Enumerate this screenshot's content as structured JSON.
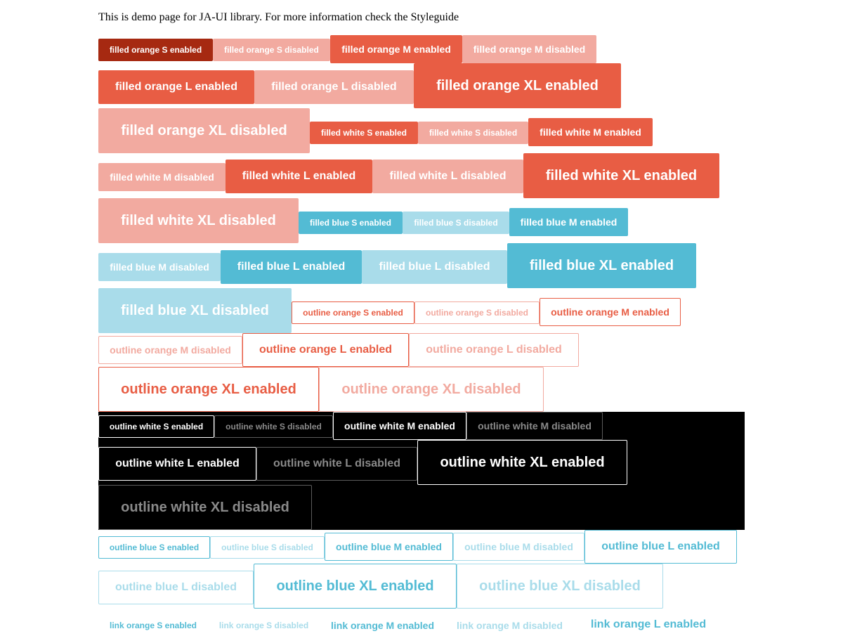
{
  "intro_text": "This is demo page for JA-UI library. For more information check the Styleguide",
  "colors": {
    "orange": "#e85d44",
    "orange_disabled": "#f2aaa0",
    "orange_pressed": "#a62911",
    "blue": "#53bbd4",
    "blue_disabled": "#a9dcea",
    "black": "#000000",
    "white": "#ffffff"
  },
  "buttons": {
    "filled_orange_s_enabled": "filled orange S enabled",
    "filled_orange_s_disabled": "filled orange S disabled",
    "filled_orange_m_enabled": "filled orange M enabled",
    "filled_orange_m_disabled": "filled orange M disabled",
    "filled_orange_l_enabled": "filled orange L enabled",
    "filled_orange_l_disabled": "filled orange L disabled",
    "filled_orange_xl_enabled": "filled orange XL enabled",
    "filled_orange_xl_disabled": "filled orange XL disabled",
    "filled_white_s_enabled": "filled white S enabled",
    "filled_white_s_disabled": "filled white S disabled",
    "filled_white_m_enabled": "filled white M enabled",
    "filled_white_m_disabled": "filled white M disabled",
    "filled_white_l_enabled": "filled white L enabled",
    "filled_white_l_disabled": "filled white L disabled",
    "filled_white_xl_enabled": "filled white XL enabled",
    "filled_white_xl_disabled": "filled white XL disabled",
    "filled_blue_s_enabled": "filled blue S enabled",
    "filled_blue_s_disabled": "filled blue S disabled",
    "filled_blue_m_enabled": "filled blue M enabled",
    "filled_blue_m_disabled": "filled blue M disabled",
    "filled_blue_l_enabled": "filled blue L enabled",
    "filled_blue_l_disabled": "filled blue L disabled",
    "filled_blue_xl_enabled": "filled blue XL enabled",
    "filled_blue_xl_disabled": "filled blue XL disabled",
    "outline_orange_s_enabled": "outline orange S enabled",
    "outline_orange_s_disabled": "outline orange S disabled",
    "outline_orange_m_enabled": "outline orange M enabled",
    "outline_orange_m_disabled": "outline orange M disabled",
    "outline_orange_l_enabled": "outline orange L enabled",
    "outline_orange_l_disabled": "outline orange L disabled",
    "outline_orange_xl_enabled": "outline orange XL enabled",
    "outline_orange_xl_disabled": "outline orange XL disabled",
    "outline_white_s_enabled": "outline white S enabled",
    "outline_white_s_disabled": "outline white S disabled",
    "outline_white_m_enabled": "outline white M enabled",
    "outline_white_m_disabled": "outline white M disabled",
    "outline_white_l_enabled": "outline white L enabled",
    "outline_white_l_disabled": "outline white L disabled",
    "outline_white_xl_enabled": "outline white XL enabled",
    "outline_white_xl_disabled": "outline white XL disabled",
    "outline_blue_s_enabled": "outline blue S enabled",
    "outline_blue_s_disabled": "outline blue S disabled",
    "outline_blue_m_enabled": "outline blue M enabled",
    "outline_blue_m_disabled": "outline blue M disabled",
    "outline_blue_l_enabled": "outline blue L enabled",
    "outline_blue_l_disabled": "outline blue L disabled",
    "outline_blue_xl_enabled": "outline blue XL enabled",
    "outline_blue_xl_disabled": "outline blue XL disabled",
    "link_orange_s_enabled": "link orange S enabled",
    "link_orange_s_disabled": "link orange S disabled",
    "link_orange_m_enabled": "link orange M enabled",
    "link_orange_m_disabled": "link orange M disabled",
    "link_orange_l_enabled": "link orange L enabled"
  }
}
